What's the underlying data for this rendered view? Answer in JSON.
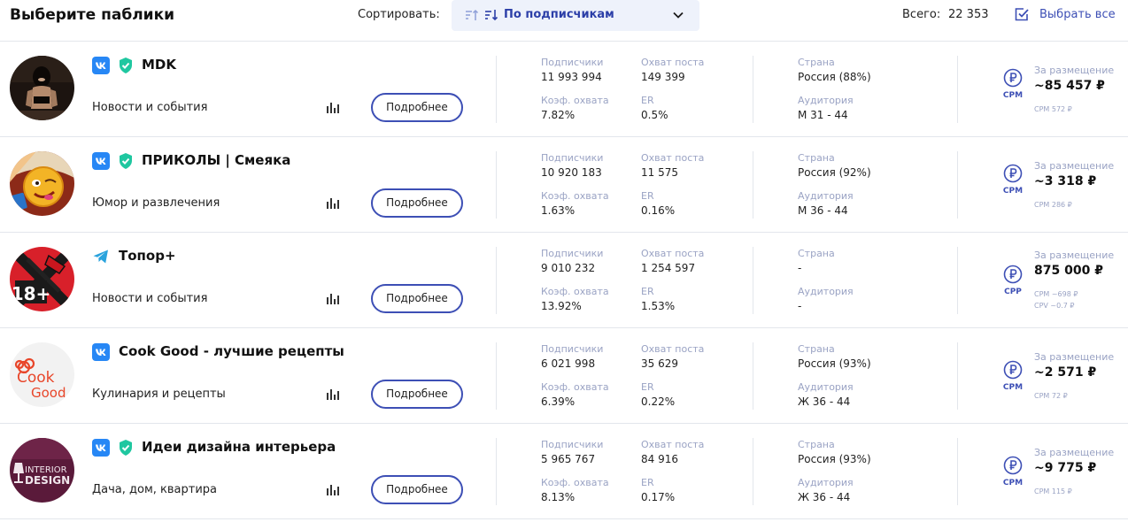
{
  "header": {
    "title": "Выберите паблики",
    "sort_label": "Сортировать:",
    "sort_value": "По подписчикам",
    "total_label": "Всего:",
    "total_value": "22 353",
    "select_all_label": "Выбрать все"
  },
  "labels": {
    "subscribers": "Подписчики",
    "reach": "Охват поста",
    "reach_coef": "Коэф. охвата",
    "er": "ER",
    "country": "Страна",
    "audience": "Аудитория",
    "per_placement": "За размещение",
    "details_button": "Подробнее"
  },
  "colors": {
    "accent": "#3d4fb5",
    "vk": "#2787f5",
    "verified": "#1fc7a0",
    "telegram": "#2aa3dd",
    "muted_label": "#9aa3c4"
  },
  "rows": [
    {
      "name": "MDK",
      "platform": "vk-icon",
      "verified": true,
      "category": "Новости и события",
      "subscribers": "11 993 994",
      "reach": "149 399",
      "reach_coef": "7.82%",
      "er": "0.5%",
      "country": "Россия (88%)",
      "audience": "М 31 - 44",
      "price_type": "CPM",
      "price": "~85 457 ₽",
      "price_sub1": "CPM 572 ₽",
      "price_sub2": ""
    },
    {
      "name": "ПРИКОЛЫ | Смеяка",
      "platform": "vk-icon",
      "verified": true,
      "category": "Юмор и развлечения",
      "subscribers": "10 920 183",
      "reach": "11 575",
      "reach_coef": "1.63%",
      "er": "0.16%",
      "country": "Россия (92%)",
      "audience": "М 36 - 44",
      "price_type": "CPM",
      "price": "~3 318 ₽",
      "price_sub1": "CPM 286 ₽",
      "price_sub2": ""
    },
    {
      "name": "Топор+",
      "platform": "telegram-icon",
      "verified": false,
      "category": "Новости и события",
      "subscribers": "9 010 232",
      "reach": "1 254 597",
      "reach_coef": "13.92%",
      "er": "1.53%",
      "country": "-",
      "audience": "-",
      "price_type": "CPP",
      "price": "875 000 ₽",
      "price_sub1": "CPM ~698 ₽",
      "price_sub2": "CPV ~0.7 ₽"
    },
    {
      "name": "Cook Good - лучшие рецепты",
      "platform": "vk-icon",
      "verified": false,
      "category": "Кулинария и рецепты",
      "subscribers": "6 021 998",
      "reach": "35 629",
      "reach_coef": "6.39%",
      "er": "0.22%",
      "country": "Россия (93%)",
      "audience": "Ж 36 - 44",
      "price_type": "CPM",
      "price": "~2 571 ₽",
      "price_sub1": "CPM 72 ₽",
      "price_sub2": ""
    },
    {
      "name": "Идеи дизайна интерьера",
      "platform": "vk-icon",
      "verified": true,
      "category": "Дача, дом, квартира",
      "subscribers": "5 965 767",
      "reach": "84 916",
      "reach_coef": "8.13%",
      "er": "0.17%",
      "country": "Россия (93%)",
      "audience": "Ж 36 - 44",
      "price_type": "CPM",
      "price": "~9 775 ₽",
      "price_sub1": "CPM 115 ₽",
      "price_sub2": ""
    }
  ]
}
